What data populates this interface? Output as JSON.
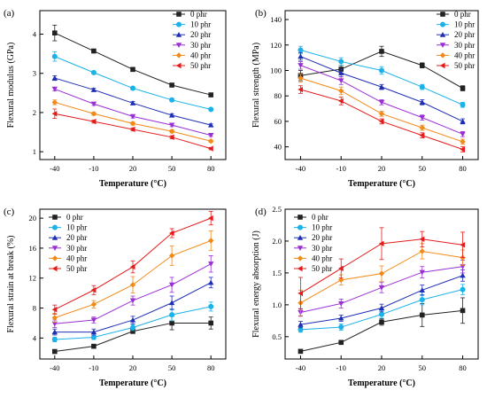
{
  "series_style": [
    {
      "color": "#222222",
      "marker": "square"
    },
    {
      "color": "#1ab2e8",
      "marker": "circle"
    },
    {
      "color": "#1f2fb5",
      "marker": "triangle-up"
    },
    {
      "color": "#9b2fd6",
      "marker": "triangle-down"
    },
    {
      "color": "#f28a18",
      "marker": "diamond"
    },
    {
      "color": "#e41b1b",
      "marker": "triangle-left"
    }
  ],
  "chart_data": [
    {
      "type": "line",
      "panel_label": "(a)",
      "categories": [
        "-40",
        "-10",
        "20",
        "50",
        "80"
      ],
      "xlabel": "Temperature (°C)",
      "ylabel": "Flexural modulus (GPa)",
      "ylim": [
        0.8,
        4.6
      ],
      "yticks": [
        "1",
        "2",
        "3",
        "4"
      ],
      "legend": "top-right",
      "series": [
        {
          "name": "0 phr",
          "values": [
            4.03,
            3.57,
            3.1,
            2.7,
            2.45
          ],
          "err": [
            0.2,
            0.04,
            0.04,
            0.04,
            0.03
          ]
        },
        {
          "name": "10 phr",
          "values": [
            3.43,
            3.02,
            2.62,
            2.32,
            2.08
          ],
          "err": [
            0.12,
            0.04,
            0.04,
            0.04,
            0.03
          ]
        },
        {
          "name": "20 phr",
          "values": [
            2.88,
            2.58,
            2.24,
            1.93,
            1.68
          ],
          "err": [
            0.06,
            0.04,
            0.04,
            0.04,
            0.03
          ]
        },
        {
          "name": "30 phr",
          "values": [
            2.6,
            2.22,
            1.9,
            1.68,
            1.42
          ],
          "err": [
            0.05,
            0.04,
            0.04,
            0.04,
            0.03
          ]
        },
        {
          "name": "40 phr",
          "values": [
            2.26,
            1.97,
            1.72,
            1.52,
            1.27
          ],
          "err": [
            0.06,
            0.04,
            0.04,
            0.04,
            0.03
          ]
        },
        {
          "name": "50 phr",
          "values": [
            1.97,
            1.77,
            1.57,
            1.37,
            1.08
          ],
          "err": [
            0.12,
            0.04,
            0.04,
            0.04,
            0.03
          ]
        }
      ]
    },
    {
      "type": "line",
      "panel_label": "(b)",
      "categories": [
        "-40",
        "-10",
        "20",
        "50",
        "80"
      ],
      "xlabel": "Temperature (°C)",
      "ylabel": "Flexural strength (MPa)",
      "ylim": [
        30,
        147
      ],
      "yticks": [
        "40",
        "60",
        "80",
        "100",
        "120",
        "140"
      ],
      "legend": "top-right",
      "series": [
        {
          "name": "0 phr",
          "values": [
            96,
            101,
            115,
            104,
            86
          ],
          "err": [
            4,
            3,
            4,
            2,
            2
          ]
        },
        {
          "name": "10 phr",
          "values": [
            116,
            107,
            100,
            87,
            73
          ],
          "err": [
            3,
            3,
            3,
            2,
            2
          ]
        },
        {
          "name": "20 phr",
          "values": [
            111,
            98,
            87,
            75,
            60
          ],
          "err": [
            3,
            3,
            2,
            2,
            2
          ]
        },
        {
          "name": "30 phr",
          "values": [
            104,
            92,
            75,
            63,
            50
          ],
          "err": [
            3,
            3,
            2,
            2,
            2
          ]
        },
        {
          "name": "40 phr",
          "values": [
            94,
            84,
            66,
            55,
            44
          ],
          "err": [
            3,
            3,
            2,
            2,
            2
          ]
        },
        {
          "name": "50 phr",
          "values": [
            85,
            76,
            60,
            49,
            38
          ],
          "err": [
            3,
            3,
            2,
            2,
            2
          ]
        }
      ]
    },
    {
      "type": "line",
      "panel_label": "(c)",
      "categories": [
        "-40",
        "-10",
        "20",
        "50",
        "80"
      ],
      "xlabel": "Temperature (°C)",
      "ylabel": "Flexural strain at break (%)",
      "ylim": [
        1.2,
        21.2
      ],
      "yticks": [
        "4",
        "8",
        "12",
        "16",
        "20"
      ],
      "legend": "top-left",
      "series": [
        {
          "name": "0 phr",
          "values": [
            2.2,
            2.9,
            4.9,
            6.0,
            6.0
          ],
          "err": [
            0.2,
            0.2,
            0.3,
            0.9,
            0.8
          ]
        },
        {
          "name": "10 phr",
          "values": [
            3.8,
            4.1,
            5.4,
            7.1,
            8.2
          ],
          "err": [
            0.3,
            0.3,
            0.4,
            0.8,
            0.6
          ]
        },
        {
          "name": "20 phr",
          "values": [
            4.8,
            4.8,
            6.4,
            8.7,
            11.4
          ],
          "err": [
            0.4,
            0.4,
            0.5,
            0.9,
            0.7
          ]
        },
        {
          "name": "30 phr",
          "values": [
            5.9,
            6.4,
            9.0,
            11.1,
            13.9
          ],
          "err": [
            0.5,
            0.4,
            0.6,
            1.0,
            1.1
          ]
        },
        {
          "name": "40 phr",
          "values": [
            6.7,
            8.5,
            11.1,
            15.0,
            17.0
          ],
          "err": [
            0.6,
            0.5,
            1.1,
            1.3,
            1.3
          ]
        },
        {
          "name": "50 phr",
          "values": [
            7.8,
            10.4,
            13.5,
            18.0,
            20.0
          ],
          "err": [
            0.6,
            0.6,
            0.8,
            0.6,
            0.9
          ]
        }
      ]
    },
    {
      "type": "line",
      "panel_label": "(d)",
      "categories": [
        "-40",
        "-10",
        "20",
        "50",
        "80"
      ],
      "xlabel": "Temperature (°C)",
      "ylabel": "Flexural energy absorption (J)",
      "ylim": [
        0.15,
        2.5
      ],
      "yticks": [
        "0.5",
        "1.0",
        "1.5",
        "2.0",
        "2.5"
      ],
      "legend": "top-left",
      "series": [
        {
          "name": "0 phr",
          "values": [
            0.27,
            0.41,
            0.73,
            0.84,
            0.91
          ],
          "err": [
            0.02,
            0.03,
            0.05,
            0.18,
            0.2
          ]
        },
        {
          "name": "10 phr",
          "values": [
            0.61,
            0.65,
            0.85,
            1.08,
            1.24
          ],
          "err": [
            0.04,
            0.05,
            0.06,
            0.08,
            0.08
          ]
        },
        {
          "name": "20 phr",
          "values": [
            0.69,
            0.79,
            0.95,
            1.23,
            1.46
          ],
          "err": [
            0.05,
            0.05,
            0.06,
            0.08,
            0.09
          ]
        },
        {
          "name": "30 phr",
          "values": [
            0.88,
            1.02,
            1.27,
            1.51,
            1.6
          ],
          "err": [
            0.06,
            0.07,
            0.08,
            0.09,
            0.1
          ]
        },
        {
          "name": "40 phr",
          "values": [
            1.03,
            1.39,
            1.49,
            1.84,
            1.74
          ],
          "err": [
            0.2,
            0.08,
            0.12,
            0.12,
            0.12
          ]
        },
        {
          "name": "50 phr",
          "values": [
            1.18,
            1.57,
            1.96,
            2.03,
            1.94
          ],
          "err": [
            0.25,
            0.15,
            0.25,
            0.12,
            0.2
          ]
        }
      ]
    }
  ]
}
